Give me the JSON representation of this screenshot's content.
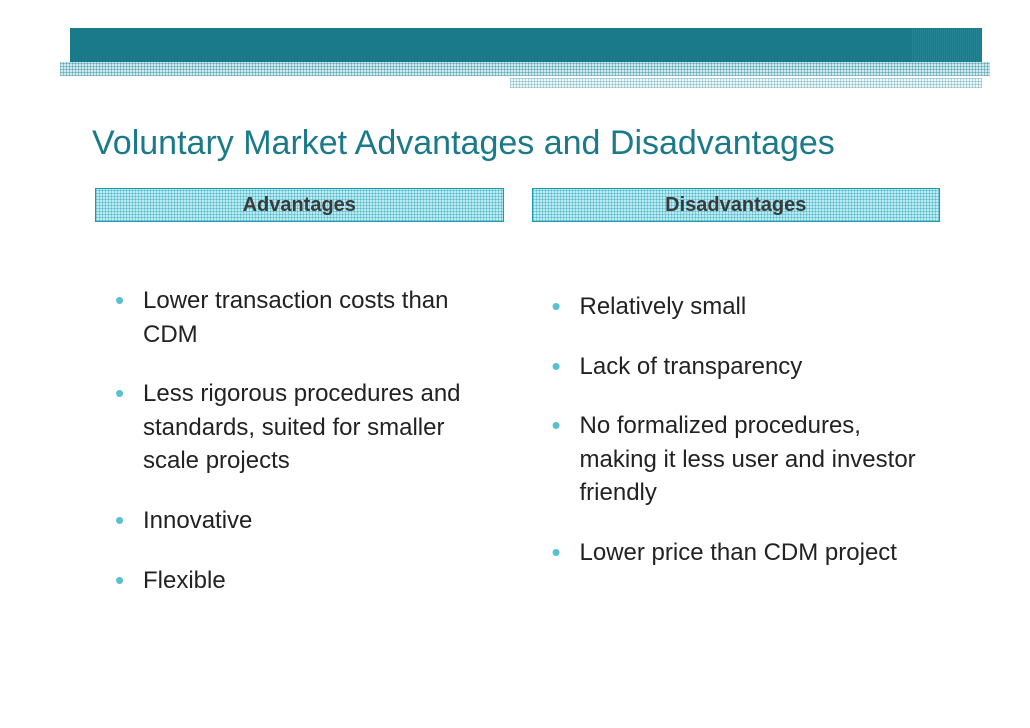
{
  "colors": {
    "accent": "#1b7a8a",
    "header_fill": "#baebf4",
    "bullet": "#58c0d0",
    "text": "#222222",
    "header_text": "#3a3a3a"
  },
  "typography": {
    "title_fontsize": 34,
    "header_fontsize": 20,
    "body_fontsize": 24
  },
  "title": "Voluntary Market Advantages and Disadvantages",
  "columns": {
    "left": {
      "header": "Advantages",
      "items": [
        "Lower transaction costs than CDM",
        "Less rigorous procedures and standards, suited for smaller scale projects",
        "Innovative",
        "Flexible"
      ]
    },
    "right": {
      "header": "Disadvantages",
      "items": [
        "Relatively small",
        "Lack of transparency",
        "No formalized procedures, making it less user and investor friendly",
        "Lower price than CDM project"
      ]
    }
  }
}
